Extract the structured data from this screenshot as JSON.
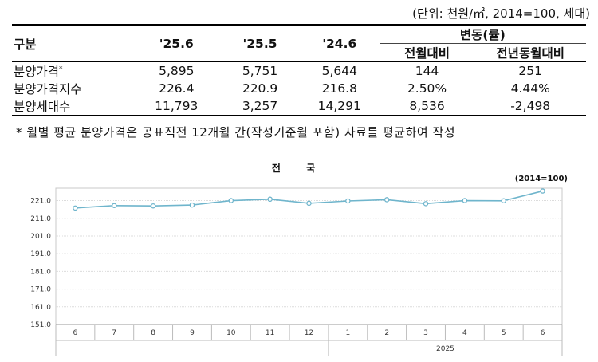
{
  "table": {
    "unit_note": "(단위: 천원/㎡, 2014=100, 세대)",
    "headers": {
      "category": "구분",
      "col_256": "'25.6",
      "col_255": "'25.5",
      "col_246": "'24.6",
      "change_group": "변동(률)",
      "mom": "전월대비",
      "yoy": "전년동월대비"
    },
    "rows": [
      {
        "label": "분양가격",
        "sup": "*",
        "v1": "5,895",
        "v2": "5,751",
        "v3": "5,644",
        "mom": "144",
        "yoy": "251"
      },
      {
        "label": "분양가격지수",
        "sup": "",
        "v1": "226.4",
        "v2": "220.9",
        "v3": "216.8",
        "mom": "2.50%",
        "yoy": "4.44%"
      },
      {
        "label": "분양세대수",
        "sup": "",
        "v1": "11,793",
        "v2": "3,257",
        "v3": "14,291",
        "mom": "8,536",
        "yoy": "-2,498"
      }
    ],
    "footnote": "* 월별 평균 분양가격은 공표직전 12개월 간(작성기준월 포함) 자료를 평균하여 작성"
  },
  "chart_data": {
    "type": "line",
    "title": "전 국",
    "base_note": "(2014=100)",
    "categories": [
      "6",
      "7",
      "8",
      "9",
      "10",
      "11",
      "12",
      "1",
      "2",
      "3",
      "4",
      "5",
      "6"
    ],
    "year_label": "2025",
    "values": [
      216.8,
      218.2,
      218.0,
      218.5,
      221.0,
      221.8,
      219.5,
      220.8,
      221.5,
      219.3,
      221.0,
      220.9,
      226.4
    ],
    "ylim": [
      151.0,
      228.0
    ],
    "yticks": [
      "221.0",
      "211.0",
      "201.0",
      "191.0",
      "181.0",
      "171.0",
      "161.0",
      "151.0"
    ],
    "ytick_values": [
      221,
      211,
      201,
      191,
      181,
      171,
      161,
      151
    ],
    "line_color": "#6fb5cc",
    "grid": true
  }
}
